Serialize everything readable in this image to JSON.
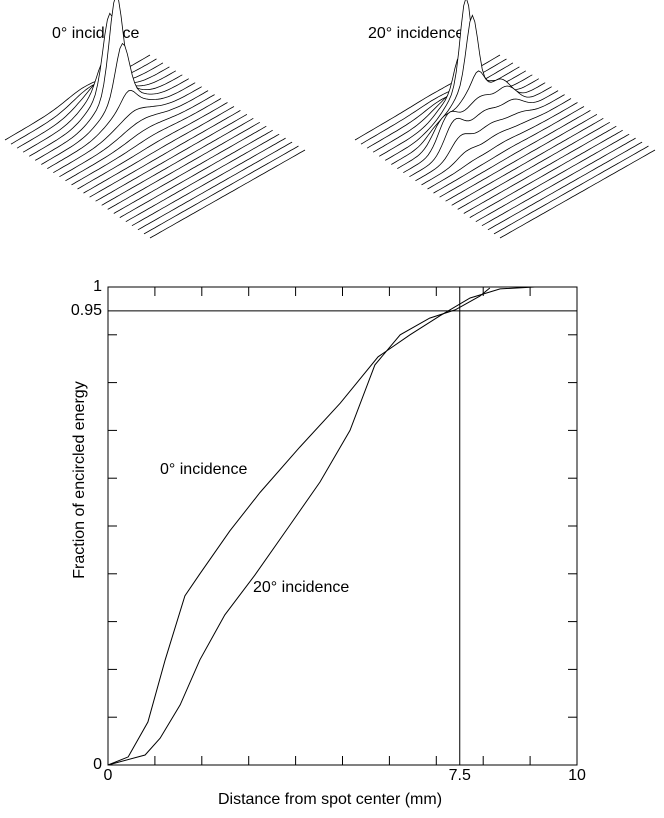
{
  "chart_data": [
    {
      "type": "surface",
      "title": "0° incidence"
    },
    {
      "type": "surface",
      "title": "20° incidence"
    },
    {
      "type": "line",
      "xlabel": "Distance from spot center (mm)",
      "ylabel": "Fraction of encircled energy",
      "xlim": [
        0,
        10
      ],
      "ylim": [
        0,
        1
      ],
      "xticks": [
        0,
        7.5,
        10
      ],
      "yticks": [
        0,
        0.95,
        1
      ],
      "xminorticks": [
        1,
        2,
        3,
        4,
        5,
        6,
        7,
        8,
        9
      ],
      "yminorticks": [
        0.1,
        0.2,
        0.3,
        0.4,
        0.5,
        0.6,
        0.7,
        0.8,
        0.9
      ],
      "grid": true,
      "color": "#000000",
      "series": [
        {
          "name": "0° incidence",
          "x": [
            0,
            0.43,
            0.85,
            1.22,
            1.64,
            1.96,
            2.6,
            3.24,
            4.09,
            4.95,
            5.76,
            6.44,
            7.08,
            7.72,
            8.36,
            9.1
          ],
          "values": [
            0,
            0.017,
            0.09,
            0.22,
            0.354,
            0.4,
            0.49,
            0.57,
            0.665,
            0.757,
            0.854,
            0.9,
            0.94,
            0.977,
            0.996,
            1.0
          ]
        },
        {
          "name": "20° incidence",
          "x": [
            0,
            0.79,
            1.11,
            1.54,
            1.96,
            2.49,
            3.13,
            3.88,
            4.52,
            5.16,
            5.69,
            6.23,
            6.86,
            7.4,
            7.93,
            8.14
          ],
          "values": [
            0,
            0.021,
            0.056,
            0.126,
            0.22,
            0.314,
            0.397,
            0.502,
            0.592,
            0.7,
            0.837,
            0.9,
            0.935,
            0.952,
            0.981,
            0.998
          ]
        }
      ]
    }
  ]
}
